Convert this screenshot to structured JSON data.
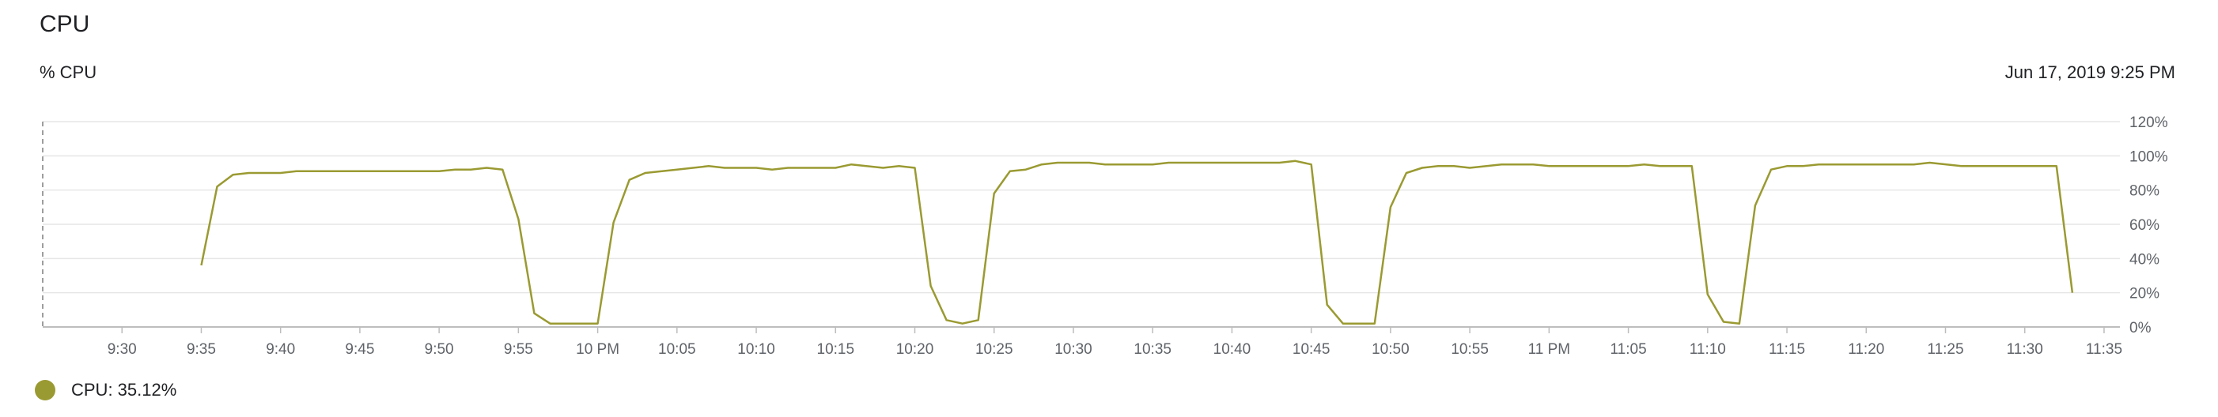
{
  "header": {
    "title": "CPU",
    "subtitle": "% CPU",
    "timestamp": "Jun 17, 2019 9:25 PM"
  },
  "legend": {
    "label": "CPU: 35.12%",
    "color": "#9a9a32"
  },
  "chart_data": {
    "type": "line",
    "ylabel": "% CPU",
    "ylim": [
      0,
      120
    ],
    "y_ticks": [
      0,
      20,
      40,
      60,
      80,
      100,
      120
    ],
    "y_tick_labels": [
      "0%",
      "20%",
      "40%",
      "60%",
      "80%",
      "100%",
      "120%"
    ],
    "x_range": [
      "21:25",
      "21:35"
    ],
    "x_domain_start": "21:25",
    "x_domain_end": "23:36",
    "x_ticks": [
      "21:30",
      "21:35",
      "21:40",
      "21:45",
      "21:50",
      "21:55",
      "22:00",
      "22:05",
      "22:10",
      "22:15",
      "22:20",
      "22:25",
      "22:30",
      "22:35",
      "22:40",
      "22:45",
      "22:50",
      "22:55",
      "23:00",
      "23:05",
      "23:10",
      "23:15",
      "23:20",
      "23:25",
      "23:30",
      "23:35"
    ],
    "x_tick_labels": [
      "9:30",
      "9:35",
      "9:40",
      "9:45",
      "9:50",
      "9:55",
      "10 PM",
      "10:05",
      "10:10",
      "10:15",
      "10:20",
      "10:25",
      "10:30",
      "10:35",
      "10:40",
      "10:45",
      "10:50",
      "10:55",
      "11 PM",
      "11:05",
      "11:10",
      "11:15",
      "11:20",
      "11:25",
      "11:30",
      "11:35"
    ],
    "grid": true,
    "legend_position": "bottom-left",
    "series": [
      {
        "name": "CPU",
        "color": "#9a9a32",
        "points": [
          [
            "21:35",
            36
          ],
          [
            "21:36",
            82
          ],
          [
            "21:37",
            89
          ],
          [
            "21:38",
            90
          ],
          [
            "21:39",
            90
          ],
          [
            "21:40",
            90
          ],
          [
            "21:41",
            91
          ],
          [
            "21:45",
            91
          ],
          [
            "21:50",
            91
          ],
          [
            "21:51",
            92
          ],
          [
            "21:52",
            92
          ],
          [
            "21:53",
            93
          ],
          [
            "21:54",
            92
          ],
          [
            "21:55",
            63
          ],
          [
            "21:56",
            8
          ],
          [
            "21:57",
            2
          ],
          [
            "22:00",
            2
          ],
          [
            "22:01",
            61
          ],
          [
            "22:02",
            86
          ],
          [
            "22:03",
            90
          ],
          [
            "22:05",
            92
          ],
          [
            "22:07",
            94
          ],
          [
            "22:08",
            93
          ],
          [
            "22:10",
            93
          ],
          [
            "22:11",
            92
          ],
          [
            "22:12",
            93
          ],
          [
            "22:15",
            93
          ],
          [
            "22:16",
            95
          ],
          [
            "22:18",
            93
          ],
          [
            "22:19",
            94
          ],
          [
            "22:20",
            93
          ],
          [
            "22:21",
            24
          ],
          [
            "22:22",
            4
          ],
          [
            "22:23",
            2
          ],
          [
            "22:24",
            4
          ],
          [
            "22:25",
            78
          ],
          [
            "22:26",
            91
          ],
          [
            "22:27",
            92
          ],
          [
            "22:28",
            95
          ],
          [
            "22:29",
            96
          ],
          [
            "22:31",
            96
          ],
          [
            "22:32",
            95
          ],
          [
            "22:35",
            95
          ],
          [
            "22:36",
            96
          ],
          [
            "22:43",
            96
          ],
          [
            "22:44",
            97
          ],
          [
            "22:45",
            95
          ],
          [
            "22:46",
            13
          ],
          [
            "22:47",
            2
          ],
          [
            "22:49",
            2
          ],
          [
            "22:50",
            70
          ],
          [
            "22:51",
            90
          ],
          [
            "22:52",
            93
          ],
          [
            "22:53",
            94
          ],
          [
            "22:54",
            94
          ],
          [
            "22:55",
            93
          ],
          [
            "22:57",
            95
          ],
          [
            "22:59",
            95
          ],
          [
            "23:00",
            94
          ],
          [
            "23:05",
            94
          ],
          [
            "23:06",
            95
          ],
          [
            "23:07",
            94
          ],
          [
            "23:09",
            94
          ],
          [
            "23:10",
            19
          ],
          [
            "23:11",
            3
          ],
          [
            "23:12",
            2
          ],
          [
            "23:13",
            71
          ],
          [
            "23:14",
            92
          ],
          [
            "23:15",
            94
          ],
          [
            "23:16",
            94
          ],
          [
            "23:17",
            95
          ],
          [
            "23:18",
            95
          ],
          [
            "23:23",
            95
          ],
          [
            "23:24",
            96
          ],
          [
            "23:26",
            94
          ],
          [
            "23:32",
            94
          ],
          [
            "23:33",
            20
          ]
        ]
      }
    ]
  }
}
